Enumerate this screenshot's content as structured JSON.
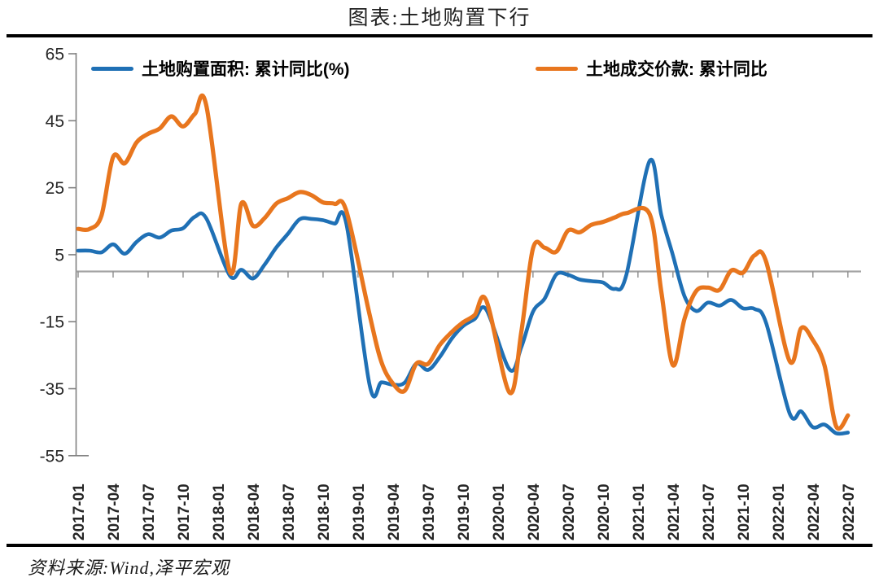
{
  "title": "图表:土地购置下行",
  "source_note": "资料来源:Wind,泽平宏观",
  "legend": {
    "items": [
      {
        "label": "土地购置面积: 累计同比(%)",
        "color": "#1f70b5"
      },
      {
        "label": "土地成交价款: 累计同比",
        "color": "#e8761e"
      }
    ]
  },
  "chart_data": {
    "type": "line",
    "title": "图表:土地购置下行",
    "x": [
      "2017-01",
      "2017-02",
      "2017-03",
      "2017-04",
      "2017-05",
      "2017-06",
      "2017-07",
      "2017-08",
      "2017-09",
      "2017-10",
      "2017-11",
      "2017-12",
      "2018-01",
      "2018-02",
      "2018-03",
      "2018-04",
      "2018-05",
      "2018-06",
      "2018-07",
      "2018-08",
      "2018-09",
      "2018-10",
      "2018-11",
      "2018-12",
      "2019-01",
      "2019-02",
      "2019-03",
      "2019-04",
      "2019-05",
      "2019-06",
      "2019-07",
      "2019-08",
      "2019-09",
      "2019-10",
      "2019-11",
      "2019-12",
      "2020-01",
      "2020-02",
      "2020-03",
      "2020-04",
      "2020-05",
      "2020-06",
      "2020-07",
      "2020-08",
      "2020-09",
      "2020-10",
      "2020-11",
      "2020-12",
      "2021-01",
      "2021-02",
      "2021-03",
      "2021-04",
      "2021-05",
      "2021-06",
      "2021-07",
      "2021-08",
      "2021-09",
      "2021-10",
      "2021-11",
      "2021-12",
      "2022-01",
      "2022-02",
      "2022-03",
      "2022-04",
      "2022-05",
      "2022-06",
      "2022-07"
    ],
    "x_tick_step": 3,
    "series": [
      {
        "name": "土地购置面积:累计同比(%)",
        "color": "#1f70b5",
        "values": [
          6.2,
          6.2,
          5.7,
          8.1,
          5.3,
          8.8,
          11.1,
          10.1,
          12.2,
          12.9,
          16.3,
          15.8,
          null,
          -1.2,
          0.5,
          -2.1,
          2.1,
          7.2,
          11.3,
          15.6,
          15.7,
          15.3,
          14.3,
          14.2,
          null,
          -34.1,
          -33.1,
          -33.8,
          -33.2,
          -27.5,
          -29.4,
          -25.6,
          -20.2,
          -16.3,
          -14.2,
          -11.4,
          null,
          -29.3,
          -22.6,
          -12.0,
          -8.1,
          -0.9,
          -1.0,
          -2.4,
          -2.9,
          -3.3,
          -5.2,
          -1.1,
          null,
          33.0,
          16.9,
          4.8,
          -7.5,
          -11.8,
          -9.3,
          -10.2,
          -8.5,
          -11.0,
          -11.2,
          -15.5,
          null,
          -42.3,
          -41.8,
          -46.5,
          -45.7,
          -48.3,
          -48.1
        ]
      },
      {
        "name": "土地成交价款:累计同比",
        "color": "#e8761e",
        "values": [
          12.7,
          12.7,
          16.7,
          34.2,
          32.3,
          38.5,
          41.1,
          42.7,
          46.3,
          43.3,
          47.0,
          49.4,
          null,
          0.0,
          20.3,
          13.6,
          16.0,
          20.3,
          21.9,
          23.7,
          22.8,
          20.6,
          20.2,
          18.0,
          null,
          -13.1,
          -27.0,
          -33.5,
          -35.6,
          -27.5,
          -27.6,
          -22.0,
          -18.2,
          -15.2,
          -13.0,
          -8.7,
          null,
          -36.2,
          -18.1,
          6.9,
          7.1,
          5.9,
          12.2,
          11.7,
          13.9,
          14.8,
          16.1,
          17.4,
          null,
          17.1,
          -6.0,
          -28.0,
          -14.0,
          -5.8,
          -4.8,
          -5.5,
          0.3,
          -0.4,
          4.8,
          2.8,
          null,
          -26.7,
          -16.9,
          -20.5,
          -28.1,
          -46.3,
          -43.0
        ]
      }
    ],
    "ylim": [
      -55,
      65
    ],
    "yticks": [
      65,
      45,
      25,
      5,
      -15,
      -35,
      -55
    ],
    "zero_line": true,
    "grid": false,
    "legend_position": "top-inside",
    "x_label_rotation": 90
  }
}
